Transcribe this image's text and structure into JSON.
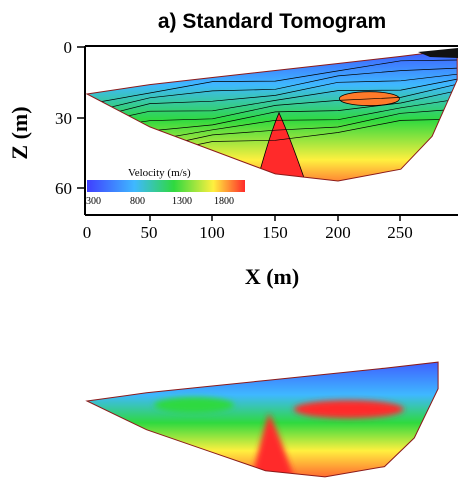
{
  "figure": {
    "title": "a) Standard Tomogram",
    "xlabel": "X (m)",
    "ylabel": "Z (m)",
    "x_ticks": [
      "0",
      "50",
      "100",
      "150",
      "200",
      "250"
    ],
    "y_ticks": [
      "0",
      "30",
      "60"
    ],
    "colorbar_title": "Velocity (m/s)",
    "colorbar_ticks": [
      "300",
      "800",
      "1300",
      "1800"
    ]
  },
  "colors": {
    "low_velocity": "#3f3fff",
    "mid_low": "#3fb8ff",
    "mid": "#2fd93f",
    "mid_high": "#fff03f",
    "high": "#ff2a2a",
    "outline": "#8b1a1a"
  },
  "chart_data": [
    {
      "type": "heatmap",
      "title": "a) Standard Tomogram",
      "xlabel": "X (m)",
      "ylabel": "Z (m)",
      "xlim": [
        0,
        295
      ],
      "ylim": [
        65,
        0
      ],
      "x_ticks": [
        0,
        50,
        100,
        150,
        200,
        250
      ],
      "y_ticks": [
        0,
        30,
        60
      ],
      "colorbar": {
        "label": "Velocity (m/s)",
        "ticks": [
          300,
          800,
          1300,
          1800
        ],
        "range": [
          300,
          1900
        ]
      },
      "contours": true,
      "model_top": [
        [
          0,
          20
        ],
        [
          50,
          16
        ],
        [
          100,
          13
        ],
        [
          150,
          10
        ],
        [
          200,
          7
        ],
        [
          250,
          4
        ],
        [
          295,
          1
        ]
      ],
      "model_bottom": [
        [
          0,
          20
        ],
        [
          50,
          34
        ],
        [
          100,
          44
        ],
        [
          150,
          54
        ],
        [
          200,
          57
        ],
        [
          250,
          52
        ],
        [
          275,
          38
        ],
        [
          295,
          14
        ]
      ],
      "velocity_layers": [
        {
          "depth_below_top": 0,
          "velocity": 400
        },
        {
          "depth_below_top": 6,
          "velocity": 700
        },
        {
          "depth_below_top": 13,
          "velocity": 1200
        },
        {
          "depth_below_top": 20,
          "velocity": 1600
        },
        {
          "depth_below_top": 28,
          "velocity": 1850
        }
      ],
      "features": [
        {
          "kind": "high-velocity ridge",
          "x": 153,
          "z_top": 28,
          "velocity": 1850
        },
        {
          "kind": "high-velocity lens",
          "x": 225,
          "z": 30,
          "velocity": 1700
        }
      ]
    },
    {
      "type": "heatmap",
      "title": "",
      "contours": false,
      "note_shape": "same section, smooth colour rendering",
      "velocity_layers": [
        {
          "depth_below_top": 0,
          "velocity": 400
        },
        {
          "depth_below_top": 8,
          "velocity": 900
        },
        {
          "depth_below_top": 15,
          "velocity": 1400
        },
        {
          "depth_below_top": 22,
          "velocity": 1850
        }
      ],
      "features": [
        {
          "kind": "high-velocity ridge",
          "x": 153,
          "z_top": 28,
          "velocity": 1850
        },
        {
          "kind": "high-velocity lens",
          "x": 220,
          "z": 30,
          "velocity": 1800
        }
      ]
    }
  ]
}
